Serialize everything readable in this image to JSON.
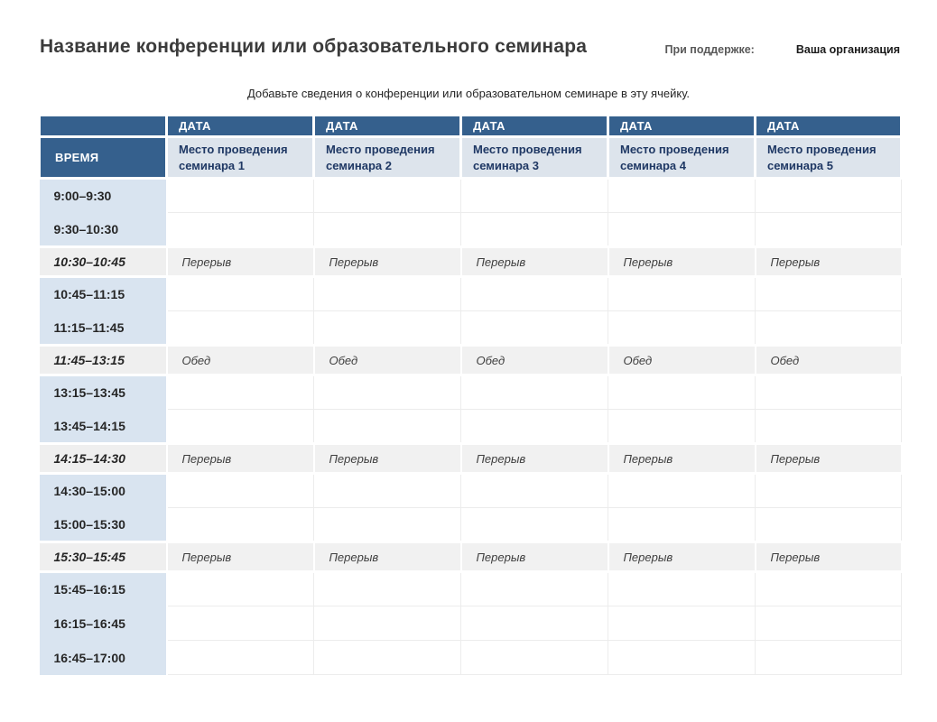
{
  "header": {
    "title": "Название конференции или образовательного семинара",
    "supported_by_label": "При поддержке:",
    "organization": "Ваша организация"
  },
  "subtitle": "Добавьте сведения о конференции или образовательном семинаре в эту ячейку.",
  "table": {
    "date_header_label": "ДАТА",
    "time_header_label": "ВРЕМЯ",
    "venue_headers": [
      "Место проведения семинара 1",
      "Место проведения семинара 2",
      "Место проведения семинара 3",
      "Место проведения семинара 4",
      "Место проведения семинара 5"
    ],
    "rows": [
      {
        "time": "9:00–9:30",
        "type": "session",
        "cells": [
          "",
          "",
          "",
          "",
          ""
        ]
      },
      {
        "time": "9:30–10:30",
        "type": "session",
        "cells": [
          "",
          "",
          "",
          "",
          ""
        ]
      },
      {
        "time": "10:30–10:45",
        "type": "break",
        "cells": [
          "Перерыв",
          "Перерыв",
          "Перерыв",
          "Перерыв",
          "Перерыв"
        ]
      },
      {
        "time": "10:45–11:15",
        "type": "session",
        "cells": [
          "",
          "",
          "",
          "",
          ""
        ]
      },
      {
        "time": "11:15–11:45",
        "type": "session",
        "cells": [
          "",
          "",
          "",
          "",
          ""
        ]
      },
      {
        "time": "11:45–13:15",
        "type": "break",
        "cells": [
          "Обед",
          "Обед",
          "Обед",
          "Обед",
          "Обед"
        ]
      },
      {
        "time": "13:15–13:45",
        "type": "session",
        "cells": [
          "",
          "",
          "",
          "",
          ""
        ]
      },
      {
        "time": "13:45–14:15",
        "type": "session",
        "cells": [
          "",
          "",
          "",
          "",
          ""
        ]
      },
      {
        "time": "14:15–14:30",
        "type": "break",
        "cells": [
          "Перерыв",
          "Перерыв",
          "Перерыв",
          "Перерыв",
          "Перерыв"
        ]
      },
      {
        "time": "14:30–15:00",
        "type": "session",
        "cells": [
          "",
          "",
          "",
          "",
          ""
        ]
      },
      {
        "time": "15:00–15:30",
        "type": "session",
        "cells": [
          "",
          "",
          "",
          "",
          ""
        ]
      },
      {
        "time": "15:30–15:45",
        "type": "break",
        "cells": [
          "Перерыв",
          "Перерыв",
          "Перерыв",
          "Перерыв",
          "Перерыв"
        ]
      },
      {
        "time": "15:45–16:15",
        "type": "session",
        "cells": [
          "",
          "",
          "",
          "",
          ""
        ]
      },
      {
        "time": "16:15–16:45",
        "type": "session",
        "cells": [
          "",
          "",
          "",
          "",
          ""
        ]
      },
      {
        "time": "16:45–17:00",
        "type": "session",
        "cells": [
          "",
          "",
          "",
          "",
          ""
        ]
      }
    ],
    "colors": {
      "accent_dark_blue": "#35608d",
      "time_column_blue": "#d9e4f0",
      "venue_header_bg": "#dde4ec",
      "venue_header_text": "#1f3864",
      "break_row_bg": "#f1f1f1"
    }
  }
}
